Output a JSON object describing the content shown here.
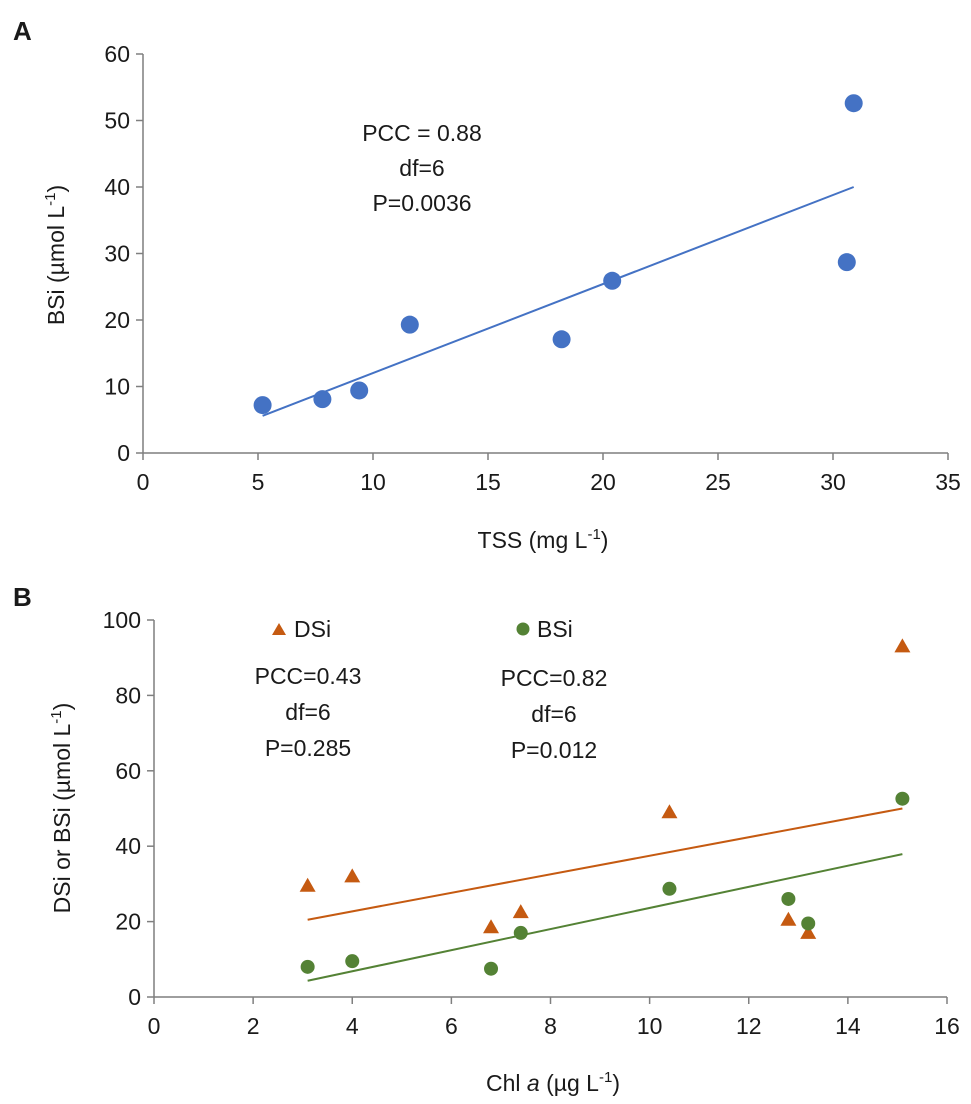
{
  "chart_data": [
    {
      "panel": "A",
      "type": "scatter",
      "xlabel": "TSS (mg L",
      "xlabel_sup": "-1",
      "xlabel_tail": ")",
      "ylabel": "BSi (µmol L",
      "ylabel_sup": "-1",
      "ylabel_tail": ")",
      "xlim": [
        0,
        35
      ],
      "ylim": [
        0,
        60
      ],
      "xticks": [
        0,
        5,
        10,
        15,
        20,
        25,
        30,
        35
      ],
      "yticks": [
        0,
        10,
        20,
        30,
        40,
        50,
        60
      ],
      "series": [
        {
          "name": "BSi",
          "marker": "circle",
          "color": "#4472C4",
          "points": [
            [
              5.2,
              7.2
            ],
            [
              7.8,
              8.1
            ],
            [
              9.4,
              9.4
            ],
            [
              11.6,
              19.3
            ],
            [
              18.2,
              17.1
            ],
            [
              20.4,
              25.9
            ],
            [
              30.6,
              28.7
            ],
            [
              30.9,
              52.6
            ]
          ],
          "trendline": [
            [
              5.2,
              5.6
            ],
            [
              30.9,
              40.0
            ]
          ]
        }
      ],
      "annotations": [
        "PCC = 0.88",
        "df=6",
        "P=0.0036"
      ]
    },
    {
      "panel": "B",
      "type": "scatter",
      "xlabel": "Chl ",
      "xlabel_italic": "a",
      "xlabel_rest": " (µg L",
      "xlabel_sup": "-1",
      "xlabel_tail": ")",
      "ylabel": "DSi or BSi (µmol L",
      "ylabel_sup": "-1",
      "ylabel_tail": ")",
      "xlim": [
        0,
        16
      ],
      "ylim": [
        0,
        100
      ],
      "xticks": [
        0,
        2,
        4,
        6,
        8,
        10,
        12,
        14,
        16
      ],
      "yticks": [
        0,
        20,
        40,
        60,
        80,
        100
      ],
      "series": [
        {
          "name": "DSi",
          "marker": "triangle",
          "color": "#C55A11",
          "points": [
            [
              3.1,
              29.5
            ],
            [
              4.0,
              32.0
            ],
            [
              6.8,
              18.5
            ],
            [
              7.4,
              22.5
            ],
            [
              10.4,
              49.0
            ],
            [
              12.8,
              20.5
            ],
            [
              13.2,
              17.0
            ],
            [
              15.1,
              93.0
            ]
          ],
          "trendline": [
            [
              3.1,
              20.5
            ],
            [
              15.1,
              50.0
            ]
          ],
          "stats": [
            "PCC=0.43",
            "df=6",
            "P=0.285"
          ]
        },
        {
          "name": "BSi",
          "marker": "circle",
          "color": "#548235",
          "points": [
            [
              3.1,
              8.0
            ],
            [
              4.0,
              9.5
            ],
            [
              6.8,
              7.5
            ],
            [
              7.4,
              17.0
            ],
            [
              10.4,
              28.7
            ],
            [
              12.8,
              26.0
            ],
            [
              13.2,
              19.5
            ],
            [
              15.1,
              52.6
            ]
          ],
          "trendline": [
            [
              3.1,
              4.3
            ],
            [
              15.1,
              37.9
            ]
          ],
          "stats": [
            "PCC=0.82",
            "df=6",
            "P=0.012"
          ]
        }
      ]
    }
  ]
}
